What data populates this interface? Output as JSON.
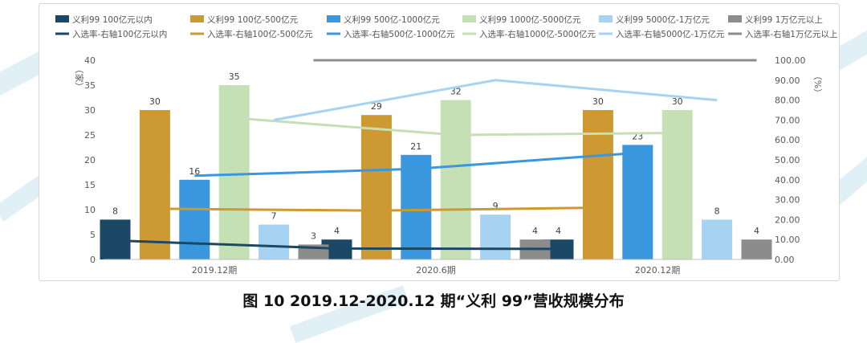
{
  "caption": "图 10 2019.12-2020.12 期“义利 99”营收规模分布",
  "chart_data": {
    "type": "bar",
    "title": "",
    "categories": [
      "2019.12期",
      "2020.6期",
      "2020.12期"
    ],
    "series": [
      {
        "name": "义利99 100亿元以内",
        "color": "#1b4965",
        "values": [
          8,
          4,
          4
        ]
      },
      {
        "name": "义利99 100亿-500亿元",
        "color": "#cc9933",
        "values": [
          30,
          29,
          30
        ]
      },
      {
        "name": "义利99 500亿-1000亿元",
        "color": "#3a96dd",
        "values": [
          16,
          21,
          23
        ]
      },
      {
        "name": "义利99 1000亿-5000亿元",
        "color": "#c5e0b4",
        "values": [
          35,
          32,
          30
        ]
      },
      {
        "name": "义利99 5000亿-1万亿元",
        "color": "#a7d3f2",
        "values": [
          7,
          9,
          8
        ]
      },
      {
        "name": "义利99 1万亿元以上",
        "color": "#8c8c8c",
        "values": [
          3,
          4,
          4
        ]
      }
    ],
    "line_series": [
      {
        "name": "入选率-右轴100亿元以内",
        "color": "#1b4965",
        "values": [
          9.5,
          5.5,
          5.3
        ]
      },
      {
        "name": "入选率-右轴100亿-500亿元",
        "color": "#cc9933",
        "values": [
          25.5,
          24.5,
          26
        ]
      },
      {
        "name": "入选率-右轴500亿-1000亿元",
        "color": "#3a96dd",
        "values": [
          42,
          45.5,
          53.5
        ]
      },
      {
        "name": "入选率-右轴1000亿-5000亿元",
        "color": "#c5e0b4",
        "values": [
          71,
          62.5,
          63.5
        ]
      },
      {
        "name": "入选率-右轴5000亿-1万亿元",
        "color": "#a7d3f2",
        "values": [
          70,
          90,
          80
        ]
      },
      {
        "name": "入选率-右轴1万亿元以上",
        "color": "#8c8c8c",
        "values": [
          100,
          100,
          100
        ]
      }
    ],
    "ylabel": "（家）",
    "y2label": "（%）",
    "ylim": [
      0,
      40
    ],
    "y_ticks": [
      "0",
      "5",
      "10",
      "15",
      "20",
      "25",
      "30",
      "35",
      "40"
    ],
    "y2lim": [
      0,
      100
    ],
    "y2_ticks": [
      "0.00",
      "10.00",
      "20.00",
      "30.00",
      "40.00",
      "50.00",
      "60.00",
      "70.00",
      "80.00",
      "90.00",
      "100.00"
    ],
    "grid": false,
    "legend_position": "top"
  }
}
